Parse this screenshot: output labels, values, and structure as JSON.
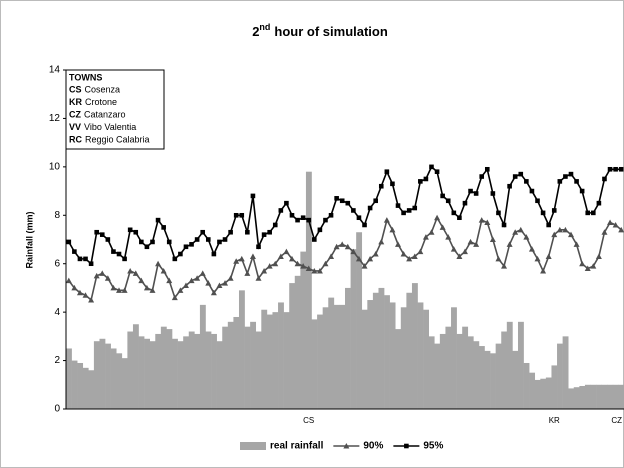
{
  "chart_data": {
    "type": "bar",
    "title": {
      "main": "2",
      "sup": "nd",
      "rest": "hour of simulation"
    },
    "y_label": "Rainfall (mm)",
    "ylim": [
      0,
      14
    ],
    "yticks": [
      0,
      2,
      4,
      6,
      8,
      10,
      12,
      14
    ],
    "towns": {
      "title": "TOWNS",
      "items": [
        {
          "code": "CS",
          "name": "Cosenza"
        },
        {
          "code": "KR",
          "name": "Crotone"
        },
        {
          "code": "CZ",
          "name": "Catanzaro"
        },
        {
          "code": "VV",
          "name": "Vibo Valentia"
        },
        {
          "code": "RC",
          "name": "Reggio Calabria"
        }
      ]
    },
    "categories": [
      null,
      null,
      null,
      null,
      null,
      null,
      null,
      null,
      null,
      null,
      null,
      null,
      null,
      null,
      null,
      null,
      null,
      null,
      null,
      null,
      null,
      null,
      null,
      null,
      null,
      null,
      null,
      null,
      null,
      null,
      null,
      null,
      null,
      null,
      null,
      null,
      null,
      null,
      null,
      null,
      null,
      null,
      null,
      "CS",
      null,
      null,
      null,
      null,
      null,
      null,
      null,
      null,
      null,
      null,
      null,
      null,
      null,
      null,
      null,
      null,
      null,
      null,
      null,
      null,
      null,
      null,
      null,
      null,
      null,
      null,
      null,
      null,
      null,
      null,
      null,
      null,
      null,
      null,
      null,
      null,
      null,
      null,
      null,
      null,
      null,
      null,
      null,
      "KR",
      null,
      null,
      null,
      null,
      null,
      null,
      null,
      null,
      null,
      null,
      null,
      "CZ"
    ],
    "series": [
      {
        "name": "real rainfall",
        "type": "bar",
        "color": "#a6a6a6",
        "values": [
          2.5,
          2.0,
          1.9,
          1.7,
          1.6,
          2.8,
          2.9,
          2.7,
          2.5,
          2.3,
          2.1,
          3.2,
          3.5,
          3.0,
          2.9,
          2.8,
          3.1,
          3.4,
          3.3,
          2.9,
          2.8,
          3.0,
          3.2,
          3.1,
          4.3,
          3.2,
          3.1,
          2.8,
          3.4,
          3.6,
          3.8,
          4.9,
          3.4,
          3.6,
          3.2,
          4.1,
          3.9,
          4.0,
          4.4,
          4.0,
          5.2,
          5.5,
          6.5,
          9.8,
          3.7,
          3.9,
          4.2,
          4.6,
          4.3,
          4.3,
          5.0,
          6.6,
          7.3,
          4.1,
          4.5,
          4.8,
          5.0,
          4.7,
          4.4,
          3.3,
          4.2,
          4.8,
          5.2,
          4.4,
          4.1,
          3.0,
          2.7,
          3.1,
          3.4,
          4.2,
          3.1,
          3.4,
          3.0,
          2.8,
          2.6,
          2.4,
          2.3,
          2.7,
          3.2,
          3.6,
          2.4,
          3.6,
          1.9,
          1.5,
          1.2,
          1.25,
          1.3,
          1.8,
          2.7,
          3.0,
          0.85,
          0.9,
          0.95,
          1.0,
          1.0,
          1.0,
          1.0,
          1.0,
          1.0,
          1.0
        ]
      },
      {
        "name": "90%",
        "type": "line",
        "marker": "triangle",
        "color": "#505050",
        "values": [
          5.3,
          5.0,
          4.8,
          4.7,
          4.5,
          5.5,
          5.6,
          5.4,
          5.0,
          4.9,
          4.9,
          5.7,
          5.6,
          5.3,
          5.0,
          4.9,
          6.0,
          5.7,
          5.3,
          4.6,
          4.9,
          5.1,
          5.3,
          5.4,
          5.6,
          5.2,
          4.8,
          5.1,
          5.2,
          5.4,
          6.1,
          6.2,
          5.6,
          6.3,
          5.4,
          5.7,
          5.9,
          6.0,
          6.3,
          6.5,
          6.2,
          6.0,
          5.9,
          5.8,
          5.7,
          5.7,
          6.0,
          6.3,
          6.7,
          6.8,
          6.7,
          6.5,
          6.2,
          5.9,
          6.2,
          6.4,
          6.9,
          7.8,
          7.4,
          6.8,
          6.4,
          6.2,
          6.3,
          6.5,
          7.1,
          7.3,
          7.9,
          7.5,
          7.1,
          6.6,
          6.3,
          6.5,
          6.9,
          6.8,
          7.8,
          7.7,
          7.0,
          6.2,
          5.9,
          6.8,
          7.3,
          7.4,
          7.1,
          6.6,
          6.2,
          5.7,
          6.3,
          7.2,
          7.4,
          7.4,
          7.2,
          6.8,
          6.0,
          5.8,
          5.9,
          6.3,
          7.3,
          7.7,
          7.6,
          7.4
        ]
      },
      {
        "name": "95%",
        "type": "line",
        "marker": "square",
        "color": "#000000",
        "values": [
          6.9,
          6.5,
          6.2,
          6.2,
          6.0,
          7.3,
          7.2,
          7.0,
          6.5,
          6.4,
          6.2,
          7.4,
          7.3,
          6.9,
          6.7,
          6.9,
          7.8,
          7.5,
          6.9,
          6.2,
          6.4,
          6.7,
          6.8,
          7.0,
          7.3,
          7.0,
          6.4,
          6.9,
          7.0,
          7.3,
          8.0,
          8.0,
          7.3,
          8.8,
          6.7,
          7.2,
          7.3,
          7.6,
          8.2,
          8.5,
          8.0,
          7.8,
          7.9,
          7.8,
          7.0,
          7.4,
          7.8,
          8.0,
          8.7,
          8.6,
          8.5,
          8.2,
          7.9,
          7.6,
          8.3,
          8.6,
          9.2,
          9.8,
          9.3,
          8.4,
          8.1,
          8.2,
          8.3,
          9.4,
          9.5,
          10.0,
          9.8,
          8.8,
          8.6,
          8.1,
          7.9,
          8.5,
          9.0,
          8.9,
          9.6,
          9.9,
          8.9,
          8.1,
          7.6,
          9.2,
          9.6,
          9.7,
          9.4,
          9.0,
          8.6,
          8.1,
          7.6,
          8.2,
          9.4,
          9.6,
          9.7,
          9.4,
          9.0,
          8.1,
          8.1,
          8.5,
          9.5,
          9.9,
          9.9,
          9.9
        ]
      }
    ]
  }
}
